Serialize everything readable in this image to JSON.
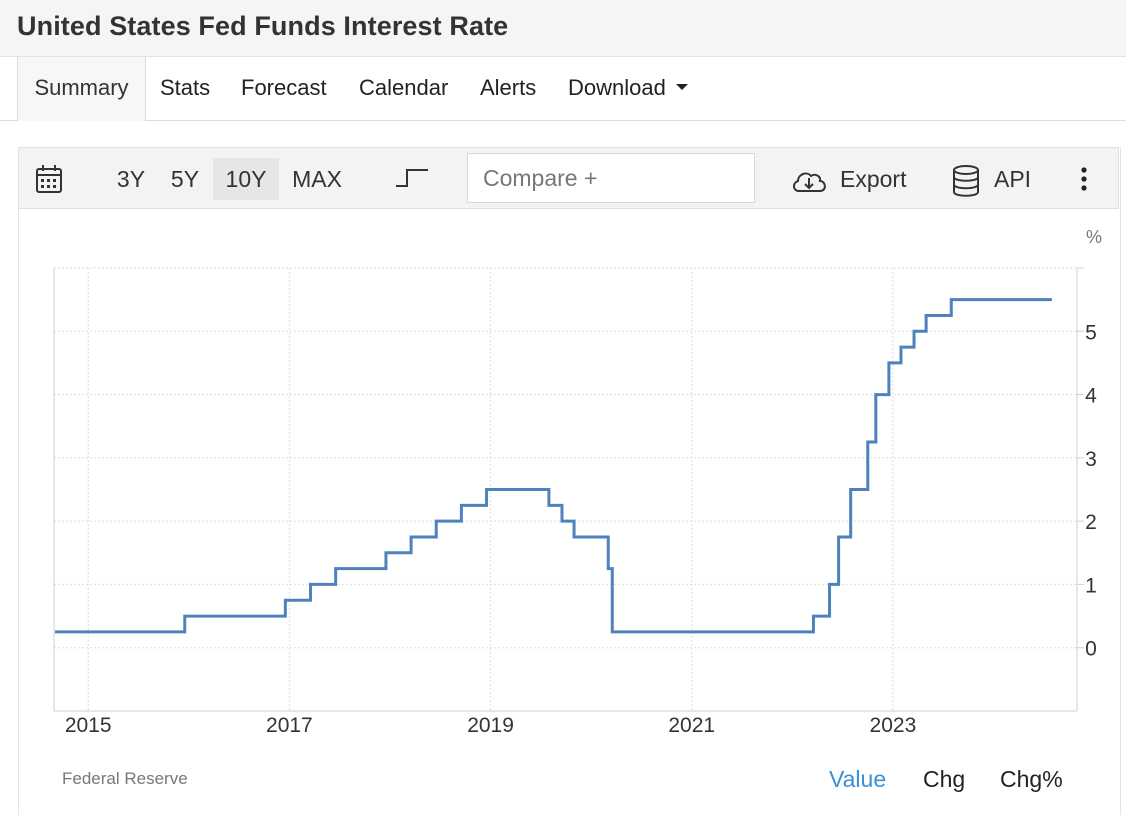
{
  "page": {
    "title": "United States Fed Funds Interest Rate"
  },
  "tabs": [
    {
      "label": "Summary",
      "active": true
    },
    {
      "label": "Stats"
    },
    {
      "label": "Forecast"
    },
    {
      "label": "Calendar"
    },
    {
      "label": "Alerts"
    },
    {
      "label": "Download",
      "has_dropdown": true
    }
  ],
  "toolbar": {
    "calendar_icon": "calendar-icon",
    "ranges": [
      {
        "label": "3Y"
      },
      {
        "label": "5Y"
      },
      {
        "label": "10Y",
        "active": true
      },
      {
        "label": "MAX"
      }
    ],
    "chart_type_icon": "step-line-icon",
    "compare_placeholder": "Compare +",
    "export_label": "Export",
    "export_icon": "cloud-download-icon",
    "api_label": "API",
    "api_icon": "database-icon",
    "more_icon": "more-vertical-icon"
  },
  "footer": {
    "source": "Federal Reserve",
    "modes": [
      {
        "label": "Value",
        "active": true
      },
      {
        "label": "Chg"
      },
      {
        "label": "Chg%"
      }
    ]
  },
  "colors": {
    "line": "#4f81bd",
    "active_mode": "#3a8fd6",
    "grid": "#dddddd"
  },
  "chart_data": {
    "type": "line",
    "step": true,
    "unit_label": "%",
    "x_ticks": [
      "2015",
      "2017",
      "2019",
      "2021",
      "2023"
    ],
    "y_ticks": [
      0,
      1,
      2,
      3,
      4,
      5
    ],
    "xlim": [
      2014.66,
      2024.83
    ],
    "ylim": [
      -1,
      6
    ],
    "grid": true,
    "y_axis_side": "right",
    "series": [
      {
        "points": [
          [
            2014.67,
            0.25
          ],
          [
            2015.96,
            0.5
          ],
          [
            2016.96,
            0.75
          ],
          [
            2017.21,
            1.0
          ],
          [
            2017.46,
            1.25
          ],
          [
            2017.96,
            1.5
          ],
          [
            2018.21,
            1.75
          ],
          [
            2018.46,
            2.0
          ],
          [
            2018.71,
            2.25
          ],
          [
            2018.96,
            2.5
          ],
          [
            2019.58,
            2.25
          ],
          [
            2019.71,
            2.0
          ],
          [
            2019.83,
            1.75
          ],
          [
            2020.17,
            1.25
          ],
          [
            2020.21,
            0.25
          ],
          [
            2022.21,
            0.5
          ],
          [
            2022.37,
            1.0
          ],
          [
            2022.46,
            1.75
          ],
          [
            2022.58,
            2.5
          ],
          [
            2022.75,
            3.25
          ],
          [
            2022.83,
            4.0
          ],
          [
            2022.96,
            4.5
          ],
          [
            2023.08,
            4.75
          ],
          [
            2023.21,
            5.0
          ],
          [
            2023.33,
            5.25
          ],
          [
            2023.58,
            5.5
          ],
          [
            2024.58,
            5.5
          ]
        ]
      }
    ]
  }
}
